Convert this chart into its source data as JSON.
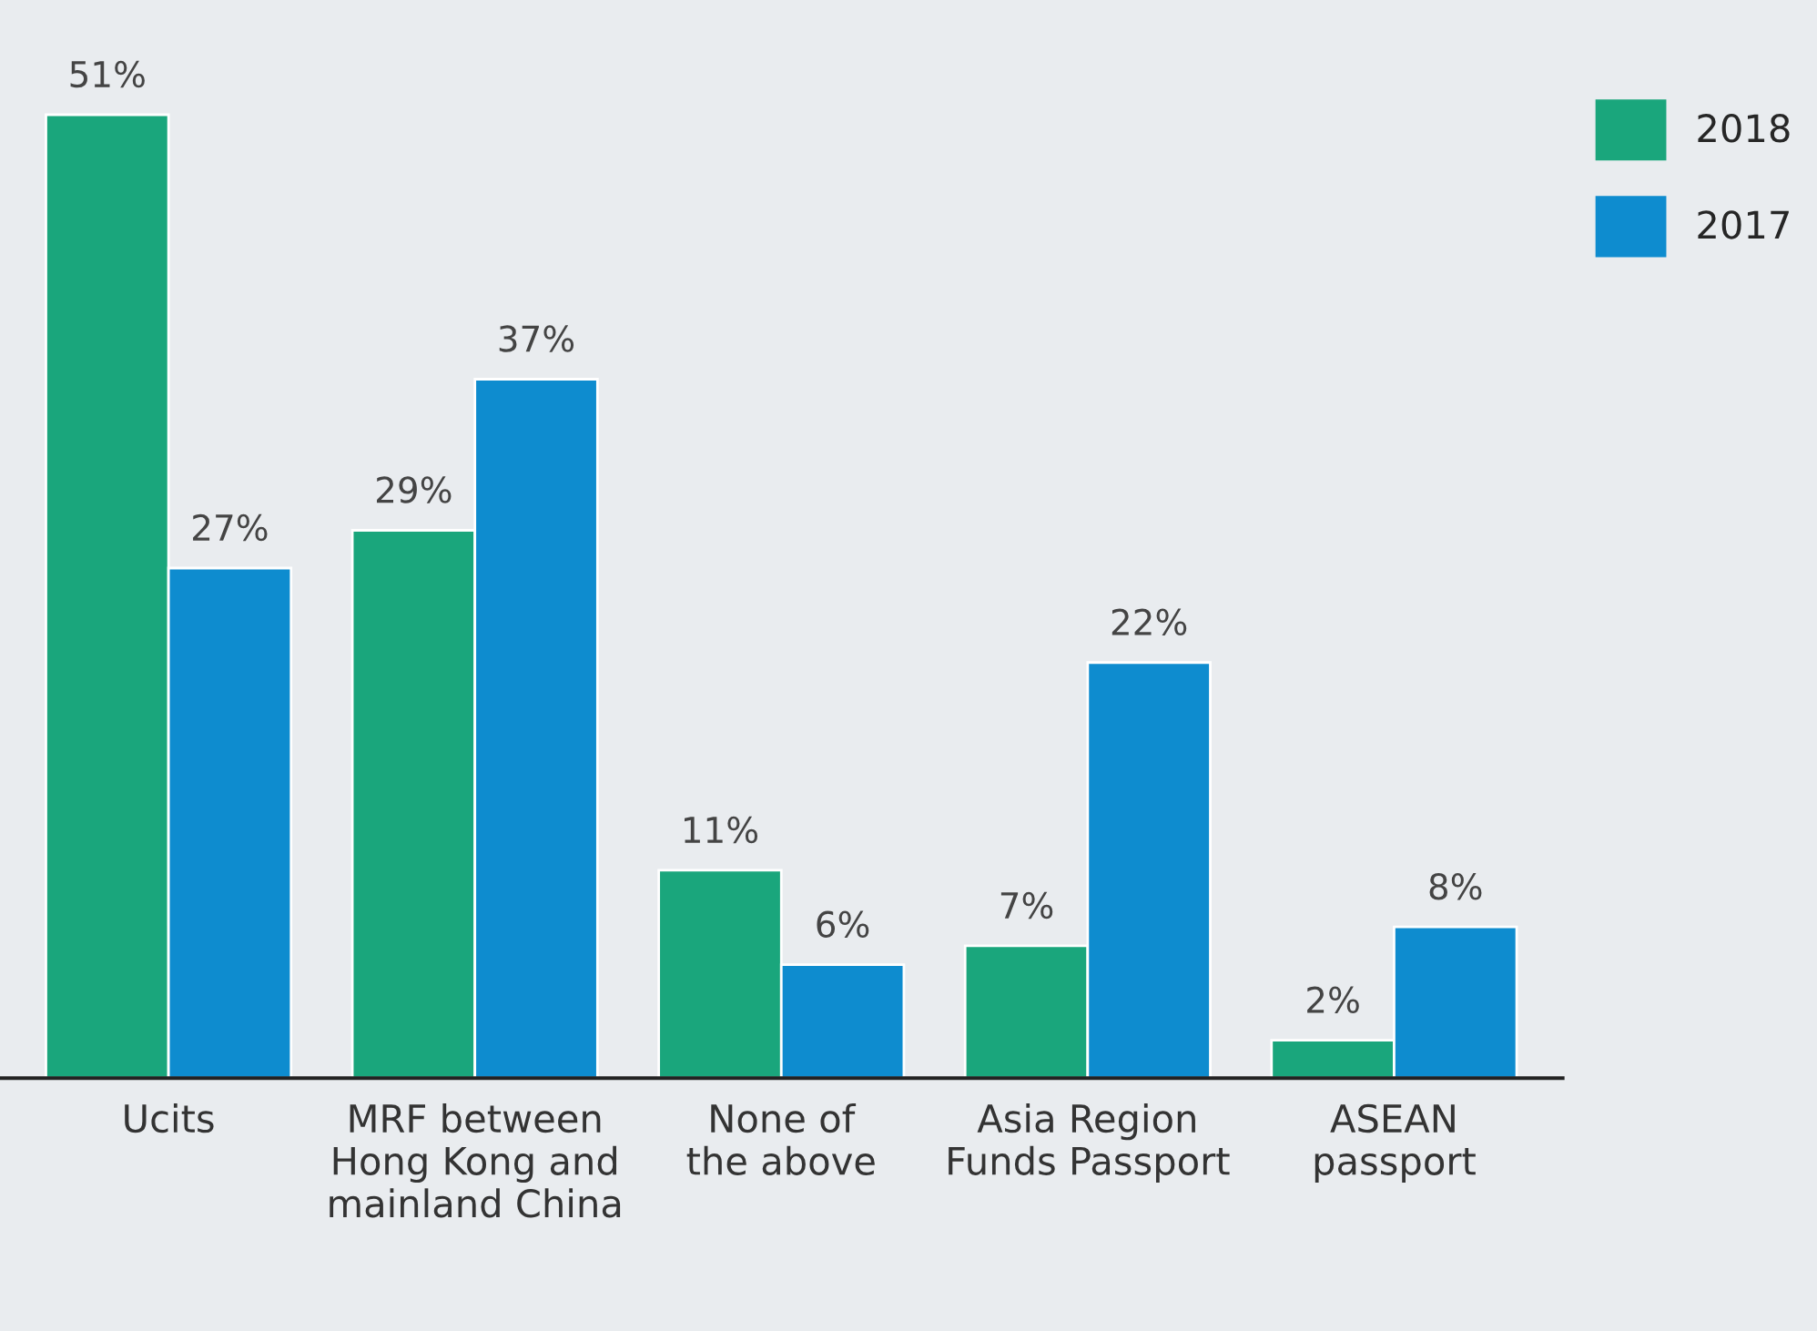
{
  "chart_data": {
    "type": "bar",
    "categories": [
      "Ucits",
      "MRF between\nHong Kong and\nmainland China",
      "None of\nthe above",
      "Asia Region\nFunds Passport",
      "ASEAN\npassport"
    ],
    "series": [
      {
        "name": "2018",
        "color": "#1aa67c",
        "values": [
          51,
          29,
          11,
          7,
          2
        ],
        "value_labels": [
          "51%",
          "29%",
          "11%",
          "7%",
          "2%"
        ]
      },
      {
        "name": "2017",
        "color": "#0e8ccf",
        "values": [
          27,
          37,
          6,
          22,
          8
        ],
        "value_labels": [
          "27%",
          "37%",
          "6%",
          "22%",
          "8%"
        ]
      }
    ],
    "legend": "top right"
  }
}
